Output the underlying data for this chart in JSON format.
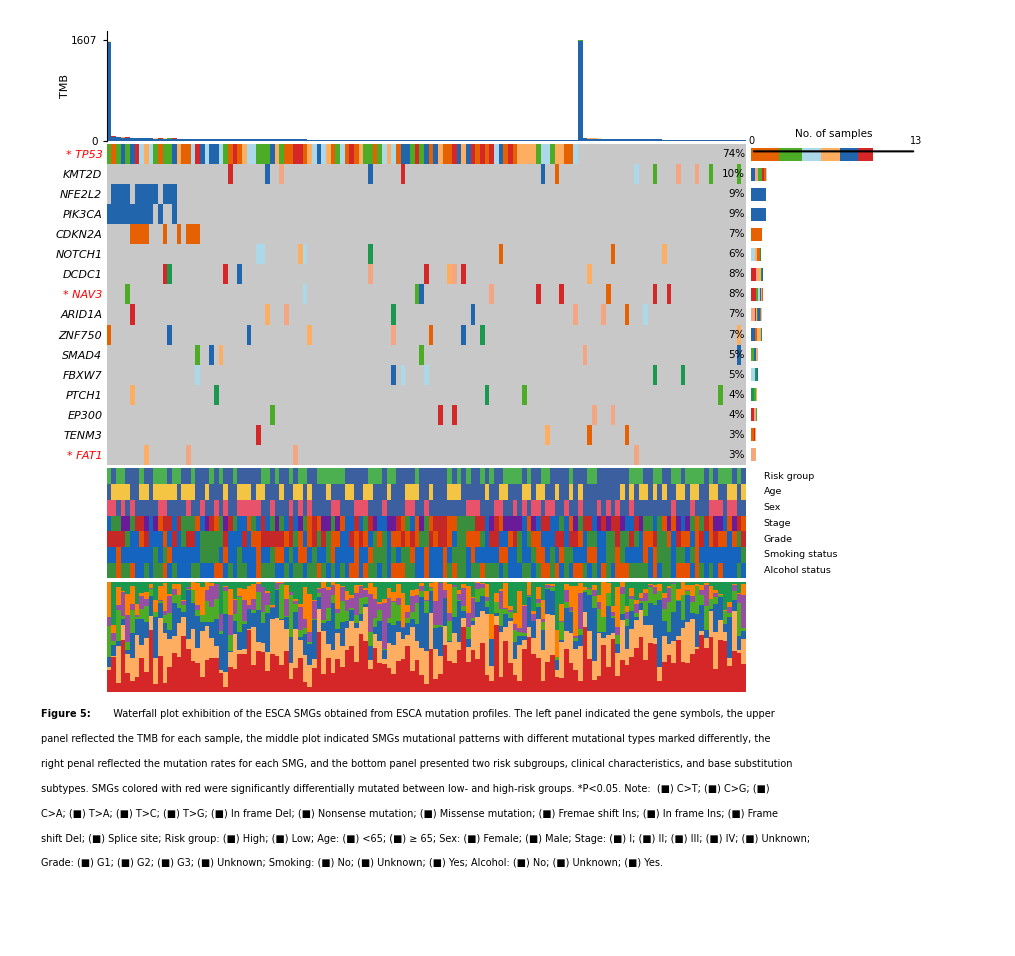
{
  "genes": [
    "TP53",
    "KMT2D",
    "NFE2L2",
    "PIK3CA",
    "CDKN2A",
    "NOTCH1",
    "DCDC1",
    "NAV3",
    "ARID1A",
    "ZNF750",
    "SMAD4",
    "FBXW7",
    "PTCH1",
    "EP300",
    "TENM3",
    "FAT1"
  ],
  "gene_rates": [
    74,
    10,
    9,
    9,
    7,
    6,
    8,
    8,
    7,
    7,
    5,
    5,
    4,
    4,
    3,
    3
  ],
  "red_genes": [
    "TP53",
    "NAV3",
    "FAT1"
  ],
  "n_samples": 137,
  "tmb_max": 1607,
  "bg_color": "#c8c8c8",
  "mut_colors": [
    "#2166ac",
    "#4dac26",
    "#d62728",
    "#e66101",
    "#abd9e9",
    "#fdae61",
    "#f4a582",
    "#1a9850",
    "#fee090",
    "#92c5de",
    "#762a83",
    "#b8e186",
    "#f46d43"
  ],
  "clinical_labels": [
    "Risk group",
    "Age",
    "Sex",
    "Stage",
    "Grade",
    "Smoking status",
    "Alcohol status"
  ],
  "sub_colors": [
    "#d62728",
    "#fdae61",
    "#2166ac",
    "#4dac26",
    "#984ea3",
    "#ff7f00",
    "#a65628"
  ],
  "caption_bold": "Figure 5:",
  "caption_text": "  Waterfall plot exhibition of the ESCA SMGs obtained from ESCA mutation profiles. The left panel indicated the gene symbols, the upper panel reflected the TMB for each sample, the middle plot indicated SMGs mutational patterns with different mutational types marked differently, the right penal reflected the mutation rates for each SMG, and the bottom panel presented two risk subgroups, clinical characteristics, and base substitution subtypes. SMGs colored with red were significantly differentially mutated between low- and high-risk groups. *P<0.05. Note:  (■) C>T; (■) C>G; (■) C>A; (■) T>A; (■) T>C; (■) T>G; (■) In frame Del; (■) Nonsense mutation; (■) Missense mutation; (■) Fremae shift Ins; (■) In frame Ins; (■) Frame shift Del; (■) Splice site; Risk group: (■) High; (■) Low; Age: (■) <65; (■) ≥ 65; Sex: (■) Female; (■) Male; Stage: (■) I; (■) II; (■) III; (■) IV; (■) Unknown; Grade: (■) G1; (■) G2; (■) G3; (■) Unknown; Smoking: (■) No; (■) Unknown; (■) Yes; Alcohol: (■) No; (■) Unknown; (■) Yes."
}
